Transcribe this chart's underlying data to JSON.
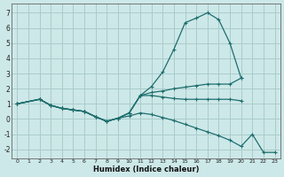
{
  "xlabel": "Humidex (Indice chaleur)",
  "bg_color": "#cde8e8",
  "grid_color": "#aacccc",
  "line_color": "#1e6e6e",
  "xlim": [
    -0.5,
    23.5
  ],
  "ylim": [
    -2.6,
    7.6
  ],
  "xticks": [
    0,
    1,
    2,
    3,
    4,
    5,
    6,
    7,
    8,
    9,
    10,
    11,
    12,
    13,
    14,
    15,
    16,
    17,
    18,
    19,
    20,
    21,
    22,
    23
  ],
  "yticks": [
    -2,
    -1,
    0,
    1,
    2,
    3,
    4,
    5,
    6,
    7
  ],
  "lines": [
    {
      "x": [
        0,
        2,
        3,
        4,
        5,
        6,
        7,
        8,
        9,
        10,
        11,
        12,
        13,
        14,
        15,
        16,
        17,
        18,
        19,
        20
      ],
      "y": [
        1.0,
        1.3,
        0.9,
        0.7,
        0.6,
        0.5,
        0.15,
        -0.15,
        0.05,
        0.4,
        1.55,
        2.15,
        3.1,
        4.6,
        6.35,
        6.65,
        7.0,
        6.55,
        5.0,
        2.7
      ]
    },
    {
      "x": [
        0,
        2,
        3,
        4,
        5,
        6,
        7,
        8,
        9,
        10,
        11,
        12,
        13,
        14,
        15,
        16,
        17,
        18,
        19,
        20
      ],
      "y": [
        1.0,
        1.3,
        0.9,
        0.7,
        0.6,
        0.5,
        0.15,
        -0.15,
        0.05,
        0.4,
        1.55,
        1.75,
        1.85,
        2.0,
        2.1,
        2.2,
        2.3,
        2.3,
        2.3,
        2.7
      ]
    },
    {
      "x": [
        0,
        2,
        3,
        4,
        5,
        6,
        7,
        8,
        9,
        10,
        11,
        12,
        13,
        14,
        15,
        16,
        17,
        18,
        19,
        20
      ],
      "y": [
        1.0,
        1.3,
        0.9,
        0.7,
        0.6,
        0.5,
        0.15,
        -0.15,
        0.05,
        0.4,
        1.55,
        1.55,
        1.45,
        1.35,
        1.3,
        1.3,
        1.3,
        1.3,
        1.3,
        1.2
      ]
    },
    {
      "x": [
        0,
        2,
        3,
        4,
        5,
        6,
        7,
        8,
        9,
        10,
        11,
        12,
        13,
        14,
        15,
        16,
        17,
        18,
        19,
        20,
        21,
        22,
        23
      ],
      "y": [
        1.0,
        1.3,
        0.9,
        0.7,
        0.6,
        0.5,
        0.15,
        -0.15,
        0.05,
        0.2,
        0.4,
        0.3,
        0.1,
        -0.1,
        -0.35,
        -0.6,
        -0.85,
        -1.1,
        -1.4,
        -1.8,
        -1.0,
        -2.2,
        -2.2
      ]
    }
  ]
}
